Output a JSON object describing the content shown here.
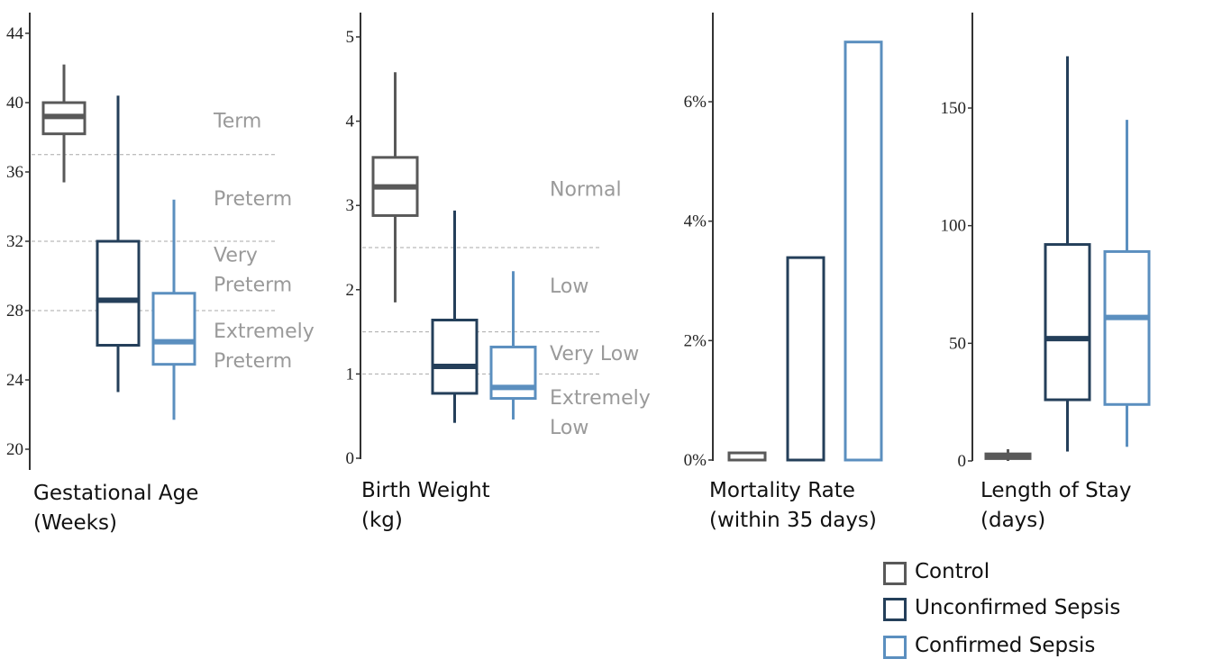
{
  "colors": {
    "control": "#595959",
    "unconfirmed": "#243f5a",
    "confirmed": "#5b8fbf",
    "category_text": "#9a9a9a",
    "threshold_line": "#aaaaaa"
  },
  "legend": [
    {
      "name": "Control",
      "color": "#595959"
    },
    {
      "name": "Unconfirmed Sepsis",
      "color": "#243f5a"
    },
    {
      "name": "Confirmed Sepsis",
      "color": "#5b8fbf"
    }
  ],
  "chart_data": [
    {
      "type": "box",
      "title_lines": [
        "Gestational Age",
        "(Weeks)"
      ],
      "ylim": [
        20,
        45
      ],
      "yticks": [
        "20",
        "24",
        "28",
        "32",
        "36",
        "40",
        "44"
      ],
      "thresholds": [
        28,
        32,
        37
      ],
      "categories": [
        {
          "lines": [
            "Term"
          ],
          "y": 39
        },
        {
          "lines": [
            "Preterm"
          ],
          "y": 34.5
        },
        {
          "lines": [
            "Very",
            "Preterm"
          ],
          "y": 30.4
        },
        {
          "lines": [
            "Extremely",
            "Preterm"
          ],
          "y": 26
        }
      ],
      "series": [
        {
          "name": "Control",
          "whislo": 35.4,
          "q1": 38.2,
          "med": 39.2,
          "q3": 40,
          "whishi": 42.2
        },
        {
          "name": "Unconfirmed Sepsis",
          "whislo": 23.3,
          "q1": 26,
          "med": 28.6,
          "q3": 32,
          "whishi": 40.4
        },
        {
          "name": "Confirmed Sepsis",
          "whislo": 21.7,
          "q1": 24.9,
          "med": 26.2,
          "q3": 29,
          "whishi": 34.4
        }
      ]
    },
    {
      "type": "box",
      "title_lines": [
        "Birth Weight",
        "(kg)"
      ],
      "ylim": [
        0,
        5.3
      ],
      "yticks": [
        "0",
        "1",
        "2",
        "3",
        "4",
        "5"
      ],
      "thresholds": [
        1,
        1.5,
        2.5
      ],
      "categories": [
        {
          "lines": [
            "Normal"
          ],
          "y": 3.2
        },
        {
          "lines": [
            "Low"
          ],
          "y": 2.05
        },
        {
          "lines": [
            "Very Low"
          ],
          "y": 1.25
        },
        {
          "lines": [
            "Extremely",
            "Low"
          ],
          "y": 0.55
        }
      ],
      "series": [
        {
          "name": "Control",
          "whislo": 1.85,
          "q1": 2.88,
          "med": 3.22,
          "q3": 3.57,
          "whishi": 4.58
        },
        {
          "name": "Unconfirmed Sepsis",
          "whislo": 0.42,
          "q1": 0.77,
          "med": 1.09,
          "q3": 1.64,
          "whishi": 2.94
        },
        {
          "name": "Confirmed Sepsis",
          "whislo": 0.46,
          "q1": 0.71,
          "med": 0.84,
          "q3": 1.32,
          "whishi": 2.22
        }
      ]
    },
    {
      "type": "bar",
      "title_lines": [
        "Mortality Rate",
        "(within 35 days)"
      ],
      "ylim": [
        0,
        7.5
      ],
      "yticks": [
        "0%",
        "2%",
        "4%",
        "6%"
      ],
      "series": [
        {
          "name": "Control",
          "value": 0.12
        },
        {
          "name": "Unconfirmed Sepsis",
          "value": 3.39
        },
        {
          "name": "Confirmed Sepsis",
          "value": 7.0
        }
      ]
    },
    {
      "type": "box",
      "title_lines": [
        "Length of Stay",
        "(days)"
      ],
      "ylim": [
        0,
        189
      ],
      "yticks": [
        "0",
        "50",
        "100",
        "150"
      ],
      "series": [
        {
          "name": "Control",
          "whislo": 0,
          "q1": 1,
          "med": 2,
          "q3": 3,
          "whishi": 5
        },
        {
          "name": "Unconfirmed Sepsis",
          "whislo": 4,
          "q1": 26,
          "med": 52,
          "q3": 92,
          "whishi": 172
        },
        {
          "name": "Confirmed Sepsis",
          "whislo": 6,
          "q1": 24,
          "med": 61,
          "q3": 89,
          "whishi": 145
        }
      ]
    }
  ]
}
